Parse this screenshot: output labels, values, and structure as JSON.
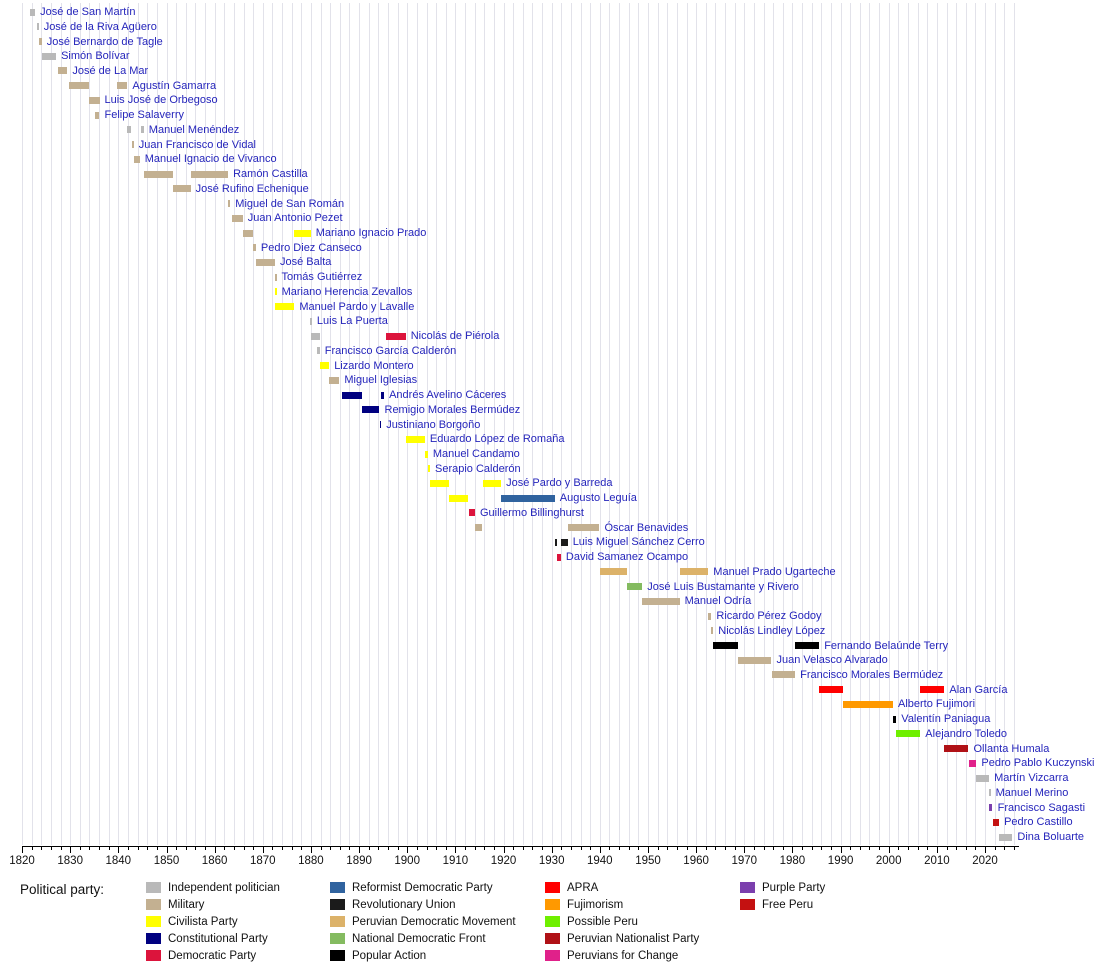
{
  "chart_data": {
    "type": "timeline",
    "description": "Gantt-style timeline of presidents of Peru, colored by political party",
    "x_axis": {
      "min": 1820,
      "max": 2027,
      "major_tick_interval": 10,
      "minor_tick_interval": 2,
      "tick_labels": [
        "1820",
        "1830",
        "1840",
        "1850",
        "1860",
        "1870",
        "1880",
        "1890",
        "1900",
        "1910",
        "1920",
        "1930",
        "1940",
        "1950",
        "1960",
        "1970",
        "1980",
        "1990",
        "2000",
        "2010",
        "2020"
      ]
    },
    "parties": {
      "independent": {
        "label": "Independent politician",
        "color": "#b9b9b9"
      },
      "military": {
        "label": "Military",
        "color": "#c3b091"
      },
      "civilista": {
        "label": "Civilista Party",
        "color": "#ffff00"
      },
      "constitutional": {
        "label": "Constitutional Party",
        "color": "#000080"
      },
      "democratic": {
        "label": "Democratic Party",
        "color": "#dc143c"
      },
      "reformist": {
        "label": "Reformist Democratic Party",
        "color": "#30639f"
      },
      "revolutionary_union": {
        "label": "Revolutionary Union",
        "color": "#1b1b1b"
      },
      "mdp": {
        "label": "Peruvian Democratic Movement",
        "color": "#dcb269"
      },
      "ndf": {
        "label": "National Democratic Front",
        "color": "#84bb60"
      },
      "popular_action": {
        "label": "Popular Action",
        "color": "#000000"
      },
      "apra": {
        "label": "APRA",
        "color": "#ff0000"
      },
      "fujimorism": {
        "label": "Fujimorism",
        "color": "#ff9900"
      },
      "possible_peru": {
        "label": "Possible Peru",
        "color": "#6fef00"
      },
      "nationalist": {
        "label": "Peruvian Nationalist Party",
        "color": "#b01116"
      },
      "peruvians_for_change": {
        "label": "Peruvians for Change",
        "color": "#e0218a"
      },
      "purple_party": {
        "label": "Purple Party",
        "color": "#7b3fad"
      },
      "free_peru": {
        "label": "Free Peru",
        "color": "#c41111"
      }
    },
    "terms_format": "[party_key, start_year, end_year]",
    "presidents": [
      {
        "name": "José de San Martín",
        "terms": [
          [
            "independent",
            1821.58,
            1822.72
          ]
        ]
      },
      {
        "name": "José de la Riva Agüero",
        "terms": [
          [
            "independent",
            1823.15,
            1823.47
          ]
        ]
      },
      {
        "name": "José Bernardo de Tagle",
        "terms": [
          [
            "military",
            1823.6,
            1824.12
          ]
        ]
      },
      {
        "name": "Simón Bolívar",
        "terms": [
          [
            "independent",
            1824.12,
            1827.08
          ]
        ]
      },
      {
        "name": "José de La Mar",
        "terms": [
          [
            "military",
            1827.44,
            1829.42
          ]
        ]
      },
      {
        "name": "Agustín Gamarra",
        "terms": [
          [
            "military",
            1829.66,
            1833.96
          ],
          [
            "military",
            1839.64,
            1841.88
          ]
        ]
      },
      {
        "name": "Luis José de Orbegoso",
        "terms": [
          [
            "military",
            1833.97,
            1836.1
          ]
        ]
      },
      {
        "name": "Felipe Salaverry",
        "terms": [
          [
            "military",
            1835.14,
            1836.1
          ]
        ]
      },
      {
        "name": "Manuel Menéndez",
        "terms": [
          [
            "independent",
            1841.88,
            1842.62
          ],
          [
            "independent",
            1844.76,
            1845.3
          ]
        ]
      },
      {
        "name": "Juan Francisco de Vidal",
        "terms": [
          [
            "military",
            1842.78,
            1843.22
          ]
        ]
      },
      {
        "name": "Manuel Ignacio de Vivanco",
        "terms": [
          [
            "military",
            1843.27,
            1844.45
          ]
        ]
      },
      {
        "name": "Ramón Castilla",
        "terms": [
          [
            "military",
            1845.3,
            1851.3
          ],
          [
            "military",
            1855.01,
            1862.81
          ]
        ]
      },
      {
        "name": "José Rufino Echenique",
        "terms": [
          [
            "military",
            1851.3,
            1855.01
          ]
        ]
      },
      {
        "name": "Miguel de San Román",
        "terms": [
          [
            "military",
            1862.81,
            1863.26
          ]
        ]
      },
      {
        "name": "Juan Antonio Pezet",
        "terms": [
          [
            "military",
            1863.59,
            1865.85
          ]
        ]
      },
      {
        "name": "Mariano Ignacio Prado",
        "terms": [
          [
            "military",
            1865.9,
            1868.04
          ],
          [
            "civilista",
            1876.58,
            1879.96
          ]
        ]
      },
      {
        "name": "Pedro Diez Canseco",
        "terms": [
          [
            "military",
            1868.04,
            1868.58
          ]
        ]
      },
      {
        "name": "José Balta",
        "terms": [
          [
            "military",
            1868.58,
            1872.55
          ]
        ]
      },
      {
        "name": "Tomás Gutiérrez",
        "terms": [
          [
            "military",
            1872.55,
            1872.73
          ]
        ]
      },
      {
        "name": "Mariano Herencia Zevallos",
        "terms": [
          [
            "civilista",
            1872.56,
            1872.74
          ]
        ]
      },
      {
        "name": "Manuel Pardo y Lavalle",
        "terms": [
          [
            "civilista",
            1872.59,
            1876.58
          ]
        ]
      },
      {
        "name": "Luis La Puerta",
        "terms": [
          [
            "independent",
            1879.9,
            1879.98
          ]
        ]
      },
      {
        "name": "Nicolás de Piérola",
        "terms": [
          [
            "independent",
            1879.98,
            1881.87
          ],
          [
            "democratic",
            1895.68,
            1899.68
          ]
        ]
      },
      {
        "name": "Francisco García Calderón",
        "terms": [
          [
            "independent",
            1881.19,
            1881.85
          ]
        ]
      },
      {
        "name": "Lizardo Montero",
        "terms": [
          [
            "civilista",
            1881.85,
            1883.8
          ]
        ]
      },
      {
        "name": "Miguel Iglesias",
        "terms": [
          [
            "military",
            1883.8,
            1885.92
          ]
        ]
      },
      {
        "name": "Andrés Avelino Cáceres",
        "terms": [
          [
            "constitutional",
            1886.42,
            1890.6
          ],
          [
            "constitutional",
            1894.6,
            1895.21
          ]
        ]
      },
      {
        "name": "Remigio Morales Bermúdez",
        "terms": [
          [
            "constitutional",
            1890.6,
            1894.25
          ]
        ]
      },
      {
        "name": "Justiniano Borgoño",
        "terms": [
          [
            "constitutional",
            1894.25,
            1894.6
          ]
        ]
      },
      {
        "name": "Eduardo López de Romaña",
        "terms": [
          [
            "civilista",
            1899.68,
            1903.68
          ]
        ]
      },
      {
        "name": "Manuel Candamo",
        "terms": [
          [
            "civilista",
            1903.68,
            1904.29
          ]
        ]
      },
      {
        "name": "Serapio Calderón",
        "terms": [
          [
            "civilista",
            1904.29,
            1904.73
          ]
        ]
      },
      {
        "name": "José Pardo y Barreda",
        "terms": [
          [
            "civilista",
            1904.73,
            1908.73
          ],
          [
            "civilista",
            1915.63,
            1919.5
          ]
        ]
      },
      {
        "name": "Augusto Leguía",
        "terms": [
          [
            "civilista",
            1908.73,
            1912.73
          ],
          [
            "reformist",
            1919.5,
            1930.65
          ]
        ]
      },
      {
        "name": "Guillermo Billinghurst",
        "terms": [
          [
            "democratic",
            1912.73,
            1914.09
          ]
        ]
      },
      {
        "name": "Óscar Benavides",
        "terms": [
          [
            "military",
            1914.09,
            1915.63
          ],
          [
            "military",
            1933.33,
            1939.93
          ]
        ]
      },
      {
        "name": "Luis Miguel Sánchez Cerro",
        "terms": [
          [
            "revolutionary_union",
            1930.65,
            1931.17
          ],
          [
            "revolutionary_union",
            1931.93,
            1933.33
          ]
        ]
      },
      {
        "name": "David Samanez Ocampo",
        "terms": [
          [
            "democratic",
            1931.19,
            1931.93
          ]
        ]
      },
      {
        "name": "Manuel Prado Ugarteche",
        "terms": [
          [
            "mdp",
            1939.93,
            1945.57
          ],
          [
            "mdp",
            1956.57,
            1962.54
          ]
        ]
      },
      {
        "name": "José Luis Bustamante y Rivero",
        "terms": [
          [
            "ndf",
            1945.57,
            1948.82
          ]
        ]
      },
      {
        "name": "Manuel Odría",
        "terms": [
          [
            "military",
            1948.82,
            1956.57
          ]
        ]
      },
      {
        "name": "Ricardo Pérez Godoy",
        "terms": [
          [
            "military",
            1962.54,
            1963.17
          ]
        ]
      },
      {
        "name": "Nicolás Lindley López",
        "terms": [
          [
            "military",
            1963.17,
            1963.57
          ]
        ]
      },
      {
        "name": "Fernando Belaúnde Terry",
        "terms": [
          [
            "popular_action",
            1963.57,
            1968.75
          ],
          [
            "popular_action",
            1980.57,
            1985.57
          ]
        ]
      },
      {
        "name": "Juan Velasco Alvarado",
        "terms": [
          [
            "military",
            1968.75,
            1975.66
          ]
        ]
      },
      {
        "name": "Francisco Morales Bermúdez",
        "terms": [
          [
            "military",
            1975.66,
            1980.57
          ]
        ]
      },
      {
        "name": "Alan García",
        "terms": [
          [
            "apra",
            1985.57,
            1990.57
          ],
          [
            "apra",
            2006.57,
            2011.57
          ]
        ]
      },
      {
        "name": "Alberto Fujimori",
        "terms": [
          [
            "fujimorism",
            1990.57,
            2000.89
          ]
        ]
      },
      {
        "name": "Valentín Paniagua",
        "terms": [
          [
            "popular_action",
            2000.89,
            2001.57
          ]
        ]
      },
      {
        "name": "Alejandro Toledo",
        "terms": [
          [
            "possible_peru",
            2001.57,
            2006.57
          ]
        ]
      },
      {
        "name": "Ollanta Humala",
        "terms": [
          [
            "nationalist",
            2011.57,
            2016.57
          ]
        ]
      },
      {
        "name": "Pedro Pablo Kuczynski",
        "terms": [
          [
            "peruvians_for_change",
            2016.57,
            2018.22
          ]
        ]
      },
      {
        "name": "Martín Vizcarra",
        "terms": [
          [
            "independent",
            2018.22,
            2020.86
          ]
        ]
      },
      {
        "name": "Manuel Merino",
        "terms": [
          [
            "independent",
            2020.86,
            2020.88
          ]
        ]
      },
      {
        "name": "Francisco Sagasti",
        "terms": [
          [
            "purple_party",
            2020.88,
            2021.57
          ]
        ]
      },
      {
        "name": "Pedro Castillo",
        "terms": [
          [
            "free_peru",
            2021.57,
            2022.93
          ]
        ]
      },
      {
        "name": "Dina Boluarte",
        "terms": [
          [
            "independent",
            2022.93,
            2025.7
          ]
        ]
      }
    ]
  },
  "legend": {
    "title": "Political party:",
    "columns": [
      [
        "independent",
        "military",
        "civilista",
        "constitutional",
        "democratic"
      ],
      [
        "reformist",
        "revolutionary_union",
        "mdp",
        "ndf",
        "popular_action"
      ],
      [
        "apra",
        "fujimorism",
        "possible_peru",
        "nationalist",
        "peruvians_for_change"
      ],
      [
        "purple_party",
        "free_peru"
      ]
    ]
  }
}
